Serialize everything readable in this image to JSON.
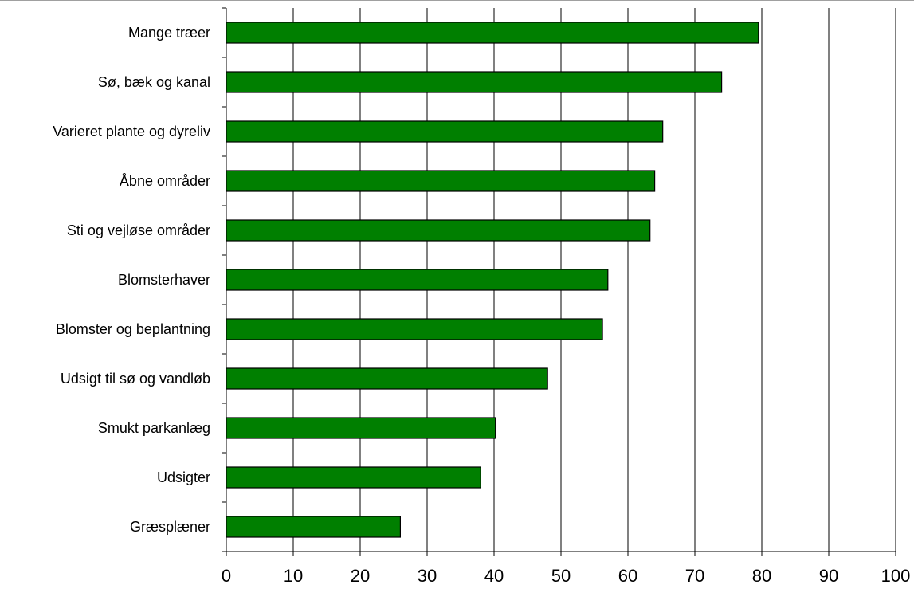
{
  "chart_data": {
    "type": "bar",
    "orientation": "horizontal",
    "categories": [
      "Mange træer",
      "Sø, bæk og kanal",
      "Varieret plante og dyreliv",
      "Åbne områder",
      "Sti og vejløse områder",
      "Blomsterhaver",
      "Blomster og beplantning",
      "Udsigt til sø og vandløb",
      "Smukt parkanlæg",
      "Udsigter",
      "Græsplæner"
    ],
    "values": [
      79.5,
      74,
      65.2,
      64,
      63.3,
      57,
      56.2,
      48,
      40.2,
      38,
      26
    ],
    "title": "",
    "xlabel": "",
    "ylabel": "",
    "xlim": [
      0,
      100
    ],
    "x_ticks": [
      "0",
      "10",
      "20",
      "30",
      "40",
      "50",
      "60",
      "70",
      "80",
      "90",
      "100"
    ],
    "grid": "vertical",
    "legend": "none",
    "colors": {
      "bar_fill": "#007f00",
      "bar_stroke": "#000000",
      "grid": "#000000",
      "axis": "#000000"
    }
  }
}
